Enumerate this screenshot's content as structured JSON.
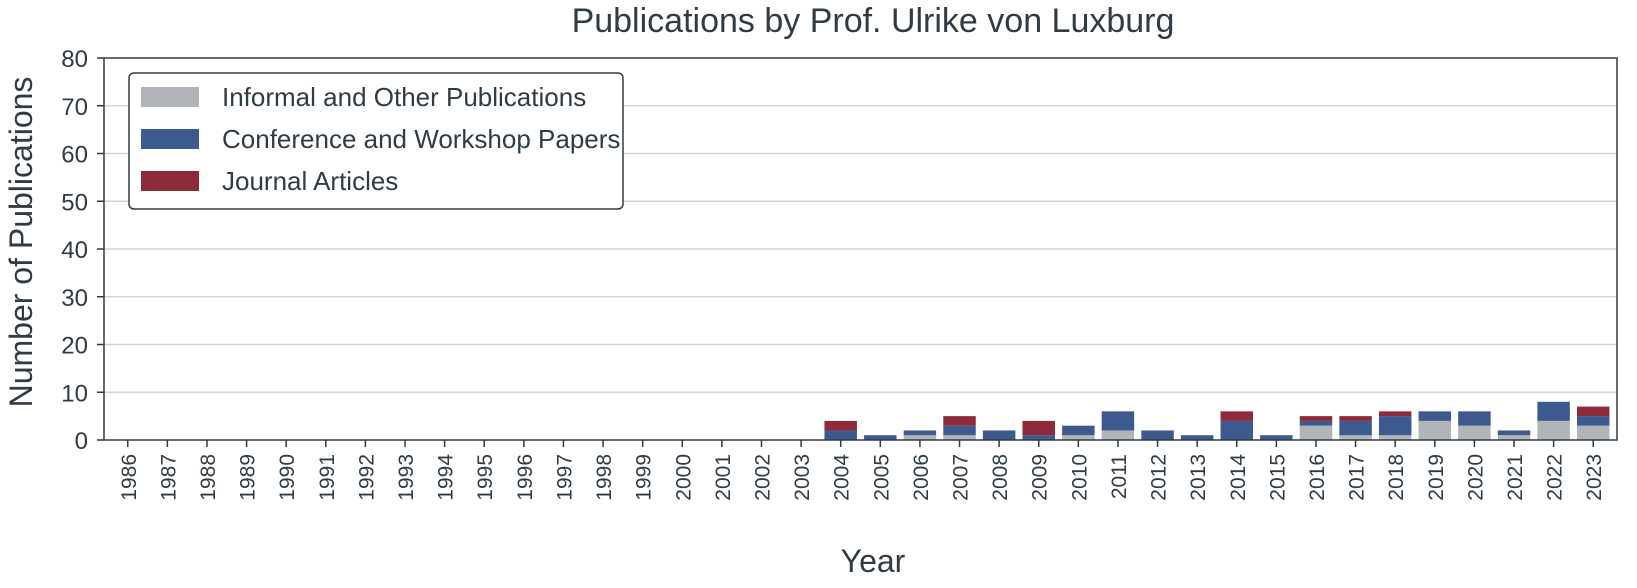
{
  "chart_data": {
    "type": "bar",
    "stacked": true,
    "title": "Publications by Prof. Ulrike von Luxburg",
    "xlabel": "Year",
    "ylabel": "Number of Publications",
    "ylim": [
      0,
      80
    ],
    "yticks": [
      0,
      10,
      20,
      30,
      40,
      50,
      60,
      70,
      80
    ],
    "grid": "horizontal",
    "legend_position": "top-left",
    "categories": [
      "1986",
      "1987",
      "1988",
      "1989",
      "1990",
      "1991",
      "1992",
      "1993",
      "1994",
      "1995",
      "1996",
      "1997",
      "1998",
      "1999",
      "2000",
      "2001",
      "2002",
      "2003",
      "2004",
      "2005",
      "2006",
      "2007",
      "2008",
      "2009",
      "2010",
      "2011",
      "2012",
      "2013",
      "2014",
      "2015",
      "2016",
      "2017",
      "2018",
      "2019",
      "2020",
      "2021",
      "2022",
      "2023"
    ],
    "series": [
      {
        "name": "Informal and Other Publications",
        "color": "#b1b4b8",
        "values": [
          0,
          0,
          0,
          0,
          0,
          0,
          0,
          0,
          0,
          0,
          0,
          0,
          0,
          0,
          0,
          0,
          0,
          0,
          0,
          0,
          1,
          1,
          0,
          0,
          1,
          2,
          0,
          0,
          0,
          0,
          3,
          1,
          1,
          4,
          3,
          1,
          4,
          3
        ]
      },
      {
        "name": "Conference and Workshop Papers",
        "color": "#3c5a8e",
        "values": [
          0,
          0,
          0,
          0,
          0,
          0,
          0,
          0,
          0,
          0,
          0,
          0,
          0,
          0,
          0,
          0,
          0,
          0,
          2,
          1,
          1,
          2,
          2,
          1,
          2,
          4,
          2,
          1,
          4,
          1,
          1,
          3,
          4,
          2,
          3,
          1,
          4,
          2
        ]
      },
      {
        "name": "Journal Articles",
        "color": "#8f2a3a",
        "values": [
          0,
          0,
          0,
          0,
          0,
          0,
          0,
          0,
          0,
          0,
          0,
          0,
          0,
          0,
          0,
          0,
          0,
          0,
          2,
          0,
          0,
          2,
          0,
          3,
          0,
          0,
          0,
          0,
          2,
          0,
          1,
          1,
          1,
          0,
          0,
          0,
          0,
          2
        ]
      }
    ]
  }
}
